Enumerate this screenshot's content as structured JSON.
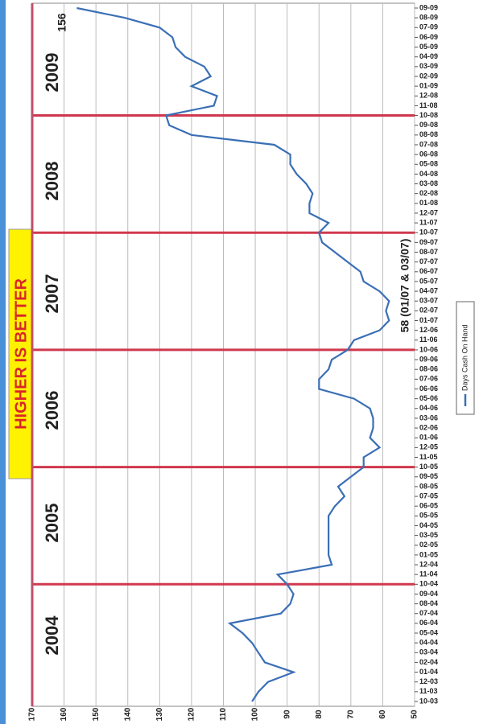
{
  "chart_data": {
    "type": "line",
    "title": "HIGHER IS BETTER",
    "year_labels": [
      "2004",
      "2005",
      "2006",
      "2007",
      "2008",
      "2009"
    ],
    "annotations": [
      "156",
      "58 (01/07 & 03/07)"
    ],
    "categories": [
      "10-03",
      "11-03",
      "12-03",
      "01-04",
      "02-04",
      "03-04",
      "04-04",
      "05-04",
      "06-04",
      "07-04",
      "08-04",
      "09-04",
      "10-04",
      "11-04",
      "12-04",
      "01-05",
      "02-05",
      "03-05",
      "04-05",
      "05-05",
      "06-05",
      "07-05",
      "08-05",
      "09-05",
      "10-05",
      "11-05",
      "12-05",
      "01-06",
      "02-06",
      "03-06",
      "04-06",
      "05-06",
      "06-06",
      "07-06",
      "08-06",
      "09-06",
      "10-06",
      "11-06",
      "12-06",
      "01-07",
      "02-07",
      "03-07",
      "04-07",
      "05-07",
      "06-07",
      "07-07",
      "08-07",
      "09-07",
      "10-07",
      "11-07",
      "12-07",
      "01-08",
      "02-08",
      "03-08",
      "04-08",
      "05-08",
      "06-08",
      "07-08",
      "08-08",
      "09-08",
      "10-08",
      "11-08",
      "12-08",
      "01-09",
      "02-09",
      "03-09",
      "04-09",
      "05-09",
      "06-09",
      "07-09",
      "08-09",
      "09-09"
    ],
    "series": [
      {
        "name": "Days Cash On Hand",
        "color": "#3a6fb5",
        "values": [
          101,
          99,
          96,
          88,
          97,
          99,
          101,
          104,
          108,
          92,
          89,
          88,
          90,
          93,
          76,
          77,
          77,
          77,
          77,
          77,
          75,
          72,
          74,
          70,
          66,
          66,
          61,
          64,
          63,
          63,
          64,
          69,
          80,
          80,
          77,
          76,
          71,
          69,
          61,
          58,
          59,
          58,
          61,
          66,
          67,
          71,
          75,
          79,
          80,
          77,
          83,
          83,
          82,
          84,
          87,
          89,
          89,
          94,
          120,
          127,
          128,
          113,
          112,
          120,
          114,
          116,
          122,
          125,
          126,
          130,
          141,
          156
        ]
      }
    ],
    "ylim": [
      50,
      170
    ],
    "yticks": [
      50,
      60,
      70,
      80,
      90,
      100,
      110,
      120,
      130,
      140,
      150,
      160,
      170
    ],
    "grid": true
  }
}
